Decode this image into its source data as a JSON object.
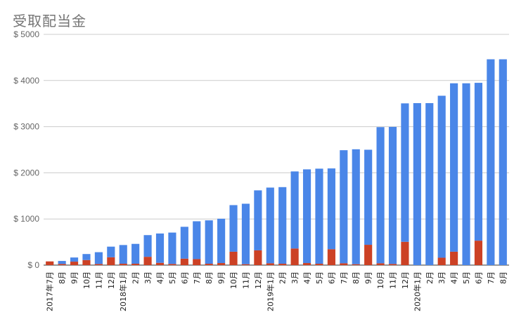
{
  "chart_data": {
    "type": "bar",
    "stacked": true,
    "title": "受取配当金",
    "xlabel": "",
    "ylabel": "",
    "ylim": [
      0,
      5000
    ],
    "y_ticks": [
      "$ 0",
      "$ 1000",
      "$ 2000",
      "$ 3000",
      "$ 4000",
      "$ 5000"
    ],
    "grid": true,
    "colors": {
      "cumulative": "#4a86e8",
      "monthly": "#cc4125"
    },
    "categories": [
      "2017年7月",
      "8月",
      "9月",
      "10月",
      "11月",
      "12月",
      "2018年1月",
      "2月",
      "3月",
      "4月",
      "5月",
      "6月",
      "7月",
      "8月",
      "9月",
      "10月",
      "11月",
      "12月",
      "2019年1月",
      "2月",
      "3月",
      "4月",
      "5月",
      "6月",
      "7月",
      "8月",
      "9月",
      "10月",
      "11月",
      "12月",
      "2020年1月",
      "2月",
      "3月",
      "4月",
      "5月",
      "6月",
      "7月",
      "8月"
    ],
    "series": [
      {
        "name": "",
        "values": [
          80,
          25,
          75,
          110,
          25,
          170,
          30,
          30,
          180,
          50,
          25,
          140,
          130,
          30,
          45,
          290,
          20,
          320,
          40,
          30,
          360,
          45,
          30,
          345,
          40,
          20,
          440,
          40,
          25,
          505,
          0,
          0,
          160,
          290,
          0,
          530,
          0,
          0
        ]
      },
      {
        "name": "",
        "values": [
          0,
          65,
          90,
          130,
          255,
          230,
          405,
          430,
          470,
          635,
          680,
          690,
          820,
          940,
          960,
          1010,
          1310,
          1300,
          1640,
          1660,
          1670,
          2030,
          2060,
          1750,
          2450,
          2490,
          2060,
          2950,
          2970,
          3000,
          3510,
          3510,
          3510,
          3650,
          3940,
          3420,
          4460,
          4460
        ]
      }
    ]
  }
}
